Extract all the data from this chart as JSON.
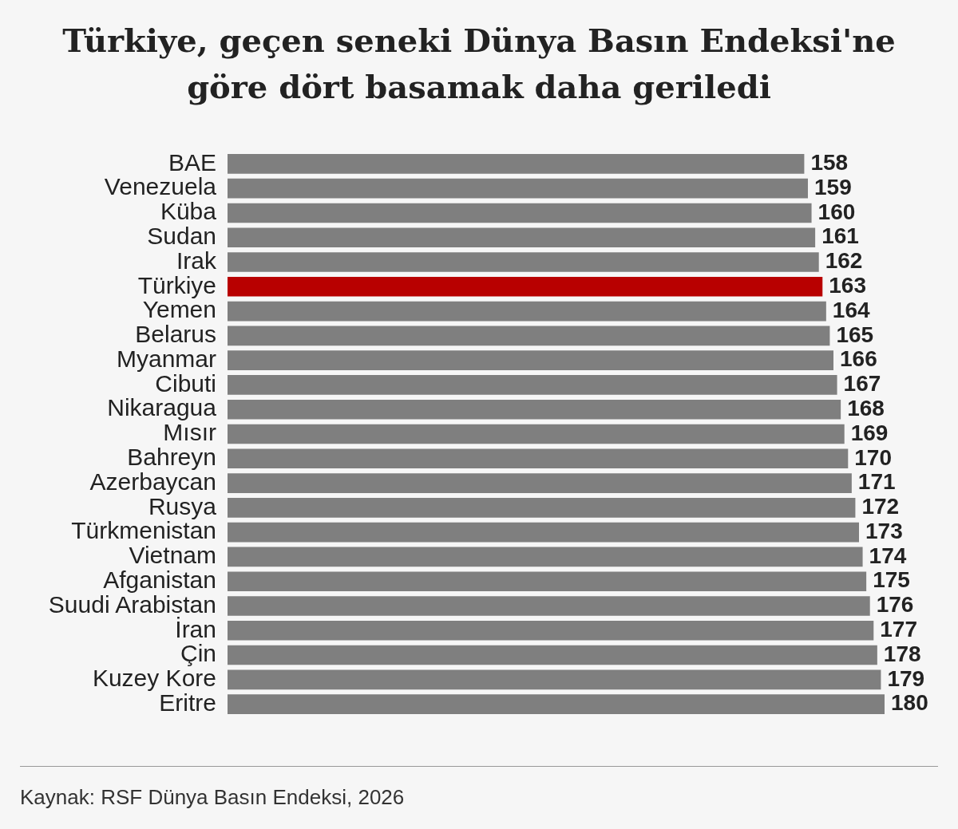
{
  "chart_data": {
    "type": "bar",
    "orientation": "horizontal",
    "title": "Türkiye, geçen seneki Dünya Basın Endeksi'ne göre dört basamak daha geriledi",
    "categories": [
      "BAE",
      "Venezuela",
      "Küba",
      "Sudan",
      "Irak",
      "Türkiye",
      "Yemen",
      "Belarus",
      "Myanmar",
      "Cibuti",
      "Nikaragua",
      "Mısır",
      "Bahreyn",
      "Azerbaycan",
      "Rusya",
      "Türkmenistan",
      "Vietnam",
      "Afganistan",
      "Suudi Arabistan",
      "İran",
      "Çin",
      "Kuzey Kore",
      "Eritre"
    ],
    "values": [
      158,
      159,
      160,
      161,
      162,
      163,
      164,
      165,
      166,
      167,
      168,
      169,
      170,
      171,
      172,
      173,
      174,
      175,
      176,
      177,
      178,
      179,
      180
    ],
    "colors": [
      "#7f7f7f",
      "#7f7f7f",
      "#7f7f7f",
      "#7f7f7f",
      "#7f7f7f",
      "#b80000",
      "#7f7f7f",
      "#7f7f7f",
      "#7f7f7f",
      "#7f7f7f",
      "#7f7f7f",
      "#7f7f7f",
      "#7f7f7f",
      "#7f7f7f",
      "#7f7f7f",
      "#7f7f7f",
      "#7f7f7f",
      "#7f7f7f",
      "#7f7f7f",
      "#7f7f7f",
      "#7f7f7f",
      "#7f7f7f",
      "#7f7f7f"
    ],
    "data_labels": true,
    "legend": false,
    "annotations": [
      "Kaynak: RSF Dünya Basın Endeksi, 2026"
    ]
  }
}
